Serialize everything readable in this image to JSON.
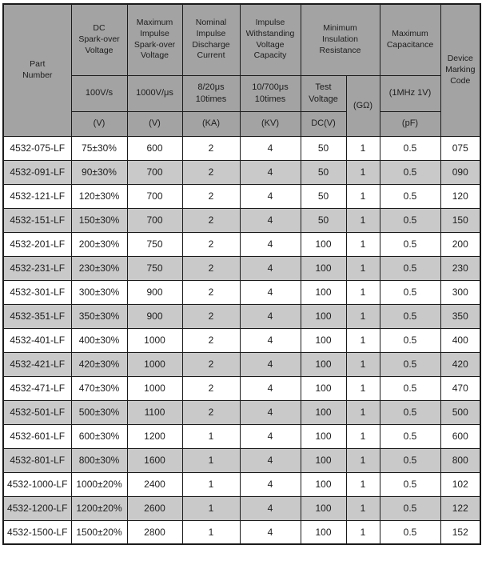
{
  "colors": {
    "page_bg": "#ffffff",
    "header_bg": "#a3a3a3",
    "row_bg": "#ffffff",
    "row_alt_bg": "#c9c9c9",
    "border": "#1b1b1b",
    "text": "#1d1d1d"
  },
  "table": {
    "column_keys": [
      "part-number",
      "dc-spark-over-voltage",
      "max-impulse-spark-over-voltage",
      "nominal-impulse-discharge-current",
      "impulse-withstanding-voltage-capacity",
      "insulation-test-voltage",
      "insulation-resistance-gohm",
      "max-capacitance",
      "device-marking-code"
    ],
    "header": {
      "part_number": "Part\nNumber",
      "device_marking": "Device\nMarking\nCode",
      "groups": [
        {
          "title": "DC\nSpark-over\nVoltage",
          "condition": "100V/s",
          "unit": "(V)"
        },
        {
          "title": "Maximum\nImpulse\nSpark-over\nVoltage",
          "condition": "1000V/μs",
          "unit": "(V)"
        },
        {
          "title": "Nominal\nImpulse\nDischarge\nCurrent",
          "condition": "8/20μs\n10times",
          "unit": "(KA)"
        },
        {
          "title": "Impulse\nWithstanding\nVoltage\nCapacity",
          "condition": "10/700μs\n10times",
          "unit": "(KV)"
        },
        {
          "title": "Minimum\nInsulation\nResistance",
          "condition": "Test\nVoltage",
          "unit": "DC(V)",
          "resistance_unit": "(GΩ)"
        },
        {
          "title": "Maximum\nCapacitance",
          "condition": "(1MHz 1V)",
          "unit": "(pF)"
        }
      ]
    },
    "rows": [
      [
        "4532-075-LF",
        "75±30%",
        "600",
        "2",
        "4",
        "50",
        "1",
        "0.5",
        "075"
      ],
      [
        "4532-091-LF",
        "90±30%",
        "700",
        "2",
        "4",
        "50",
        "1",
        "0.5",
        "090"
      ],
      [
        "4532-121-LF",
        "120±30%",
        "700",
        "2",
        "4",
        "50",
        "1",
        "0.5",
        "120"
      ],
      [
        "4532-151-LF",
        "150±30%",
        "700",
        "2",
        "4",
        "50",
        "1",
        "0.5",
        "150"
      ],
      [
        "4532-201-LF",
        "200±30%",
        "750",
        "2",
        "4",
        "100",
        "1",
        "0.5",
        "200"
      ],
      [
        "4532-231-LF",
        "230±30%",
        "750",
        "2",
        "4",
        "100",
        "1",
        "0.5",
        "230"
      ],
      [
        "4532-301-LF",
        "300±30%",
        "900",
        "2",
        "4",
        "100",
        "1",
        "0.5",
        "300"
      ],
      [
        "4532-351-LF",
        "350±30%",
        "900",
        "2",
        "4",
        "100",
        "1",
        "0.5",
        "350"
      ],
      [
        "4532-401-LF",
        "400±30%",
        "1000",
        "2",
        "4",
        "100",
        "1",
        "0.5",
        "400"
      ],
      [
        "4532-421-LF",
        "420±30%",
        "1000",
        "2",
        "4",
        "100",
        "1",
        "0.5",
        "420"
      ],
      [
        "4532-471-LF",
        "470±30%",
        "1000",
        "2",
        "4",
        "100",
        "1",
        "0.5",
        "470"
      ],
      [
        "4532-501-LF",
        "500±30%",
        "1100",
        "2",
        "4",
        "100",
        "1",
        "0.5",
        "500"
      ],
      [
        "4532-601-LF",
        "600±30%",
        "1200",
        "1",
        "4",
        "100",
        "1",
        "0.5",
        "600"
      ],
      [
        "4532-801-LF",
        "800±30%",
        "1600",
        "1",
        "4",
        "100",
        "1",
        "0.5",
        "800"
      ],
      [
        "4532-1000-LF",
        "1000±20%",
        "2400",
        "1",
        "4",
        "100",
        "1",
        "0.5",
        "102"
      ],
      [
        "4532-1200-LF",
        "1200±20%",
        "2600",
        "1",
        "4",
        "100",
        "1",
        "0.5",
        "122"
      ],
      [
        "4532-1500-LF",
        "1500±20%",
        "2800",
        "1",
        "4",
        "100",
        "1",
        "0.5",
        "152"
      ]
    ]
  }
}
